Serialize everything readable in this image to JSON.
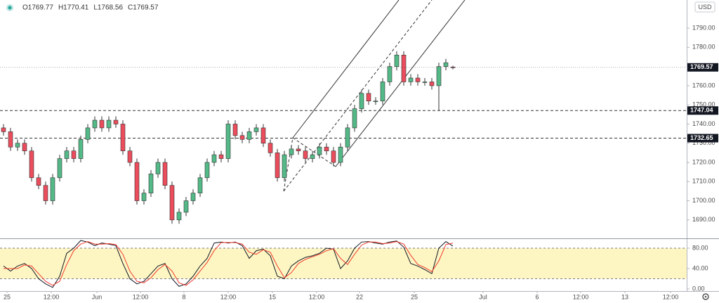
{
  "chart_data": [
    {
      "type": "candlestick",
      "legend": [
        {
          "value": 1769.77,
          "label": "O1769.77"
        },
        {
          "value": 1770.41,
          "label": "H1770.41"
        },
        {
          "value": 1768.56,
          "label": "L1768.56"
        },
        {
          "value": 1769.57,
          "label": "C1769.57"
        }
      ],
      "currency": "USD",
      "xlim": [
        -0.5,
        97.3
      ],
      "xticks": [
        {
          "value": 0.5,
          "label": "25"
        },
        {
          "value": 6.8,
          "label": "12:00"
        },
        {
          "value": 13.3,
          "label": "Jun"
        },
        {
          "value": 19.5,
          "label": "12:00"
        },
        {
          "value": 25.7,
          "label": "8"
        },
        {
          "value": 32,
          "label": "12:00"
        },
        {
          "value": 38.3,
          "label": "15"
        },
        {
          "value": 44.6,
          "label": "12:00"
        },
        {
          "value": 50.7,
          "label": "22"
        },
        {
          "value": 58.5,
          "label": "25"
        },
        {
          "value": 68.3,
          "label": "Jul"
        },
        {
          "value": 76,
          "label": "6"
        },
        {
          "value": 82.2,
          "label": "12:00"
        },
        {
          "value": 88.5,
          "label": "13"
        },
        {
          "value": 95,
          "label": "12:00"
        }
      ],
      "ylim": [
        1680.4,
        1804.7
      ],
      "yticks": [
        {
          "value": 1690,
          "label": "1690.00"
        },
        {
          "value": 1700,
          "label": "1700.00"
        },
        {
          "value": 1710,
          "label": "1710.00"
        },
        {
          "value": 1720,
          "label": "1720.00"
        },
        {
          "value": 1730,
          "label": "1730.00"
        },
        {
          "value": 1740,
          "label": "1740.00"
        },
        {
          "value": 1750,
          "label": "1750.00"
        },
        {
          "value": 1760,
          "label": "1760.00"
        },
        {
          "value": 1770,
          "label": "1770.00"
        },
        {
          "value": 1780,
          "label": "1780.00"
        },
        {
          "value": 1790,
          "label": "1790.00"
        }
      ],
      "up_color": "#53b987",
      "down_color": "#eb4d5c",
      "open": [
        1738,
        1736,
        1728,
        1730,
        1726,
        1712,
        1708,
        1700,
        1712,
        1722,
        1726,
        1722,
        1732,
        1738,
        1742,
        1738,
        1742,
        1740,
        1726,
        1720,
        1700,
        1704,
        1714,
        1720,
        1708,
        1690,
        1694,
        1700,
        1704,
        1712,
        1720,
        1724,
        1722,
        1740,
        1734,
        1732,
        1736,
        1738,
        1730,
        1725,
        1712,
        1724,
        1727,
        1726,
        1722,
        1724,
        1728,
        1726,
        1720,
        1728,
        1738,
        1748,
        1756,
        1752,
        1752,
        1762,
        1770,
        1776,
        1762,
        1764,
        1762,
        1762,
        1760,
        1770,
        1769.77
      ],
      "high": [
        1740,
        1738,
        1732,
        1732,
        1728,
        1714,
        1710,
        1714,
        1724,
        1728,
        1728,
        1734,
        1740,
        1744,
        1744,
        1744,
        1744,
        1742,
        1728,
        1722,
        1706,
        1716,
        1722,
        1722,
        1710,
        1696,
        1702,
        1706,
        1714,
        1722,
        1726,
        1726,
        1742,
        1742,
        1736,
        1738,
        1740,
        1740,
        1732,
        1727,
        1726,
        1729,
        1729,
        1728,
        1726,
        1730,
        1730,
        1728,
        1730,
        1740,
        1750,
        1758,
        1758,
        1754,
        1764,
        1772,
        1778,
        1778,
        1766,
        1766,
        1764,
        1764,
        1772,
        1774,
        1770.41
      ],
      "low": [
        1734,
        1726,
        1726,
        1724,
        1710,
        1706,
        1698,
        1698,
        1710,
        1720,
        1720,
        1720,
        1730,
        1736,
        1736,
        1736,
        1738,
        1724,
        1718,
        1698,
        1698,
        1702,
        1712,
        1706,
        1688,
        1688,
        1692,
        1698,
        1702,
        1710,
        1718,
        1720,
        1720,
        1732,
        1730,
        1730,
        1734,
        1728,
        1723,
        1710,
        1710,
        1722,
        1724,
        1720,
        1720,
        1722,
        1724,
        1718,
        1718,
        1726,
        1736,
        1746,
        1750,
        1750,
        1750,
        1760,
        1768,
        1760,
        1760,
        1760,
        1760,
        1758,
        1747,
        1768,
        1768.56
      ],
      "close": [
        1736,
        1728,
        1730,
        1726,
        1712,
        1708,
        1700,
        1712,
        1722,
        1726,
        1722,
        1732,
        1738,
        1742,
        1738,
        1742,
        1740,
        1726,
        1720,
        1700,
        1704,
        1714,
        1720,
        1708,
        1690,
        1694,
        1700,
        1704,
        1712,
        1720,
        1724,
        1722,
        1740,
        1734,
        1732,
        1736,
        1738,
        1730,
        1725,
        1712,
        1724,
        1727,
        1726,
        1722,
        1724,
        1728,
        1726,
        1720,
        1728,
        1738,
        1748,
        1756,
        1752,
        1752,
        1762,
        1770,
        1776,
        1762,
        1764,
        1762,
        1762,
        1760,
        1770,
        1772,
        1769.57
      ],
      "hlines": [
        {
          "value": 1747.04,
          "label": "1747.04"
        },
        {
          "value": 1732.65,
          "label": "1732.65"
        }
      ],
      "last_price": {
        "value": 1769.57,
        "label": "1769.57"
      }
    },
    {
      "type": "line",
      "xlim": [
        -0.5,
        97.3
      ],
      "ylim": [
        -4.1,
        99.3
      ],
      "yticks": [
        {
          "value": 0,
          "label": "0.00"
        },
        {
          "value": 40,
          "label": "40.00"
        },
        {
          "value": 80,
          "label": "80.00"
        }
      ],
      "band": [
        20,
        80
      ],
      "band_color": "#fdf6c3",
      "series": [
        {
          "color": "#131722",
          "values": [
            45,
            35,
            45,
            50,
            40,
            20,
            10,
            3,
            25,
            70,
            80,
            95,
            92,
            85,
            90,
            88,
            85,
            50,
            20,
            10,
            15,
            30,
            45,
            50,
            20,
            5,
            10,
            25,
            45,
            60,
            90,
            92,
            90,
            92,
            85,
            60,
            75,
            78,
            65,
            25,
            20,
            45,
            55,
            62,
            65,
            70,
            80,
            78,
            40,
            55,
            80,
            92,
            93,
            90,
            88,
            92,
            94,
            82,
            50,
            45,
            38,
            30,
            80,
            93,
            84
          ]
        },
        {
          "color": "#f23b2e",
          "values": [
            40,
            40,
            40,
            47,
            45,
            30,
            15,
            7,
            15,
            48,
            75,
            88,
            93,
            88,
            88,
            89,
            87,
            68,
            35,
            15,
            12,
            22,
            38,
            48,
            35,
            12,
            7,
            18,
            35,
            52,
            75,
            91,
            91,
            91,
            88,
            72,
            68,
            77,
            72,
            45,
            22,
            32,
            50,
            58,
            63,
            68,
            75,
            79,
            60,
            48,
            68,
            86,
            92,
            92,
            89,
            90,
            93,
            88,
            66,
            48,
            42,
            34,
            55,
            87,
            90
          ]
        }
      ]
    }
  ]
}
